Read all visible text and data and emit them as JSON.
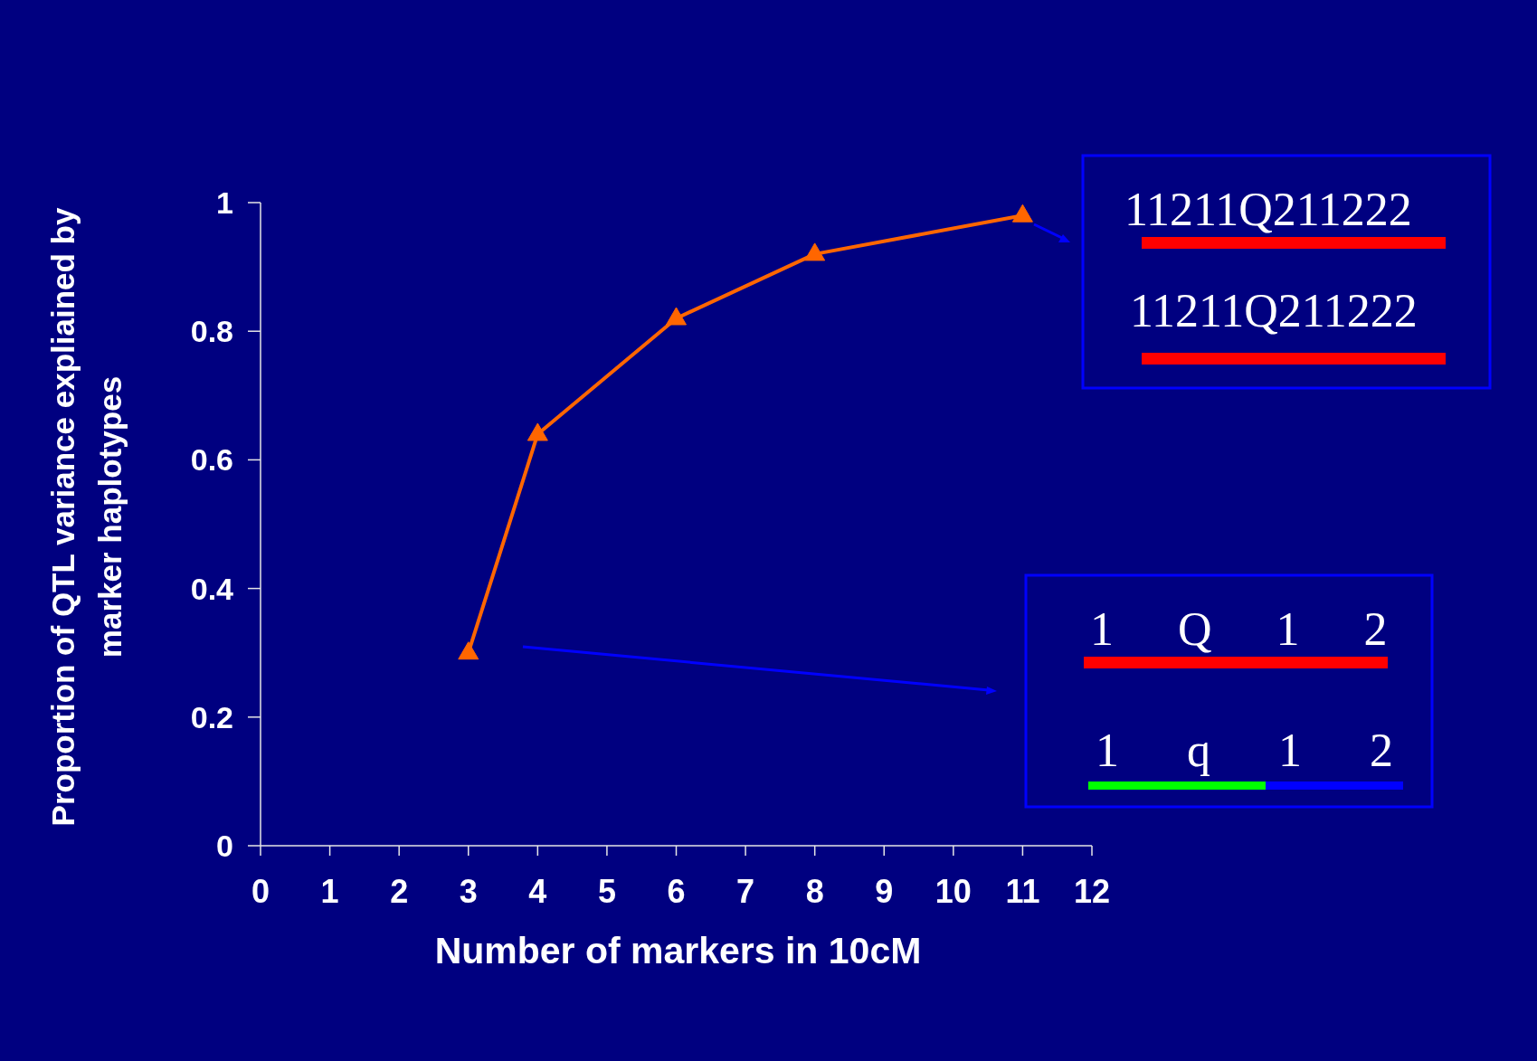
{
  "chart_data": {
    "type": "line",
    "xlabel": "Number of markers in 10cM",
    "ylabel": "Proportion of QTL variance expliained by marker haplotypes",
    "x": [
      3,
      4,
      6,
      8,
      11
    ],
    "series": [
      {
        "color": "#ff6600",
        "values": [
          0.3,
          0.64,
          0.82,
          0.92,
          0.98
        ]
      }
    ],
    "xlim": [
      0,
      12
    ],
    "xticks": [
      0,
      1,
      2,
      3,
      4,
      5,
      6,
      7,
      8,
      9,
      10,
      11,
      12
    ],
    "ylim": [
      0,
      1
    ],
    "yticks": [
      0,
      0.2,
      0.4,
      0.6,
      0.8,
      1
    ],
    "marker": "triangle",
    "line_style": "solid",
    "annotations": [
      "11211Q211222",
      "11211Q211222",
      "1 Q 1 2",
      "1 q 1 2"
    ]
  }
}
